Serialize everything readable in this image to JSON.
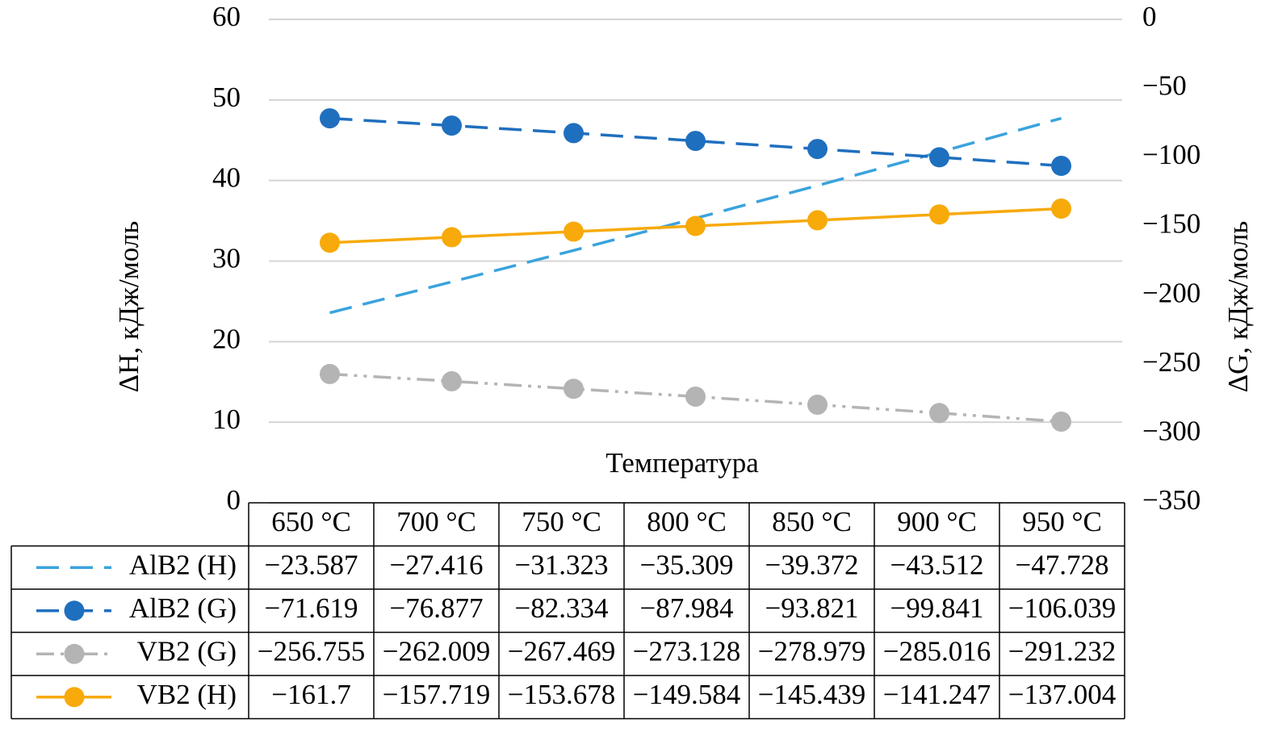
{
  "chart_data": {
    "type": "line",
    "x_label": "Температура",
    "y_label": "ΔH, кДж/моль",
    "y2_label": "ΔG, кДж/моль",
    "categories": [
      "650 °C",
      "700 °C",
      "750 °C",
      "800 °C",
      "850 °C",
      "900 °C",
      "950 °C"
    ],
    "ylim": [
      0,
      -60
    ],
    "yticks": [
      0,
      {
        "value": -10,
        "label": "10"
      },
      {
        "value": -20,
        "label": "20"
      },
      {
        "value": -30,
        "label": "30"
      },
      {
        "value": -40,
        "label": "40"
      },
      {
        "value": -50,
        "label": "50"
      },
      {
        "value": -60,
        "label": "60"
      }
    ],
    "y2lim": [
      -350,
      0
    ],
    "y2ticks": [
      {
        "value": -350,
        "label": "−350"
      },
      {
        "value": -300,
        "label": "−300"
      },
      {
        "value": -250,
        "label": "−250"
      },
      {
        "value": -200,
        "label": "−200"
      },
      {
        "value": -150,
        "label": "−150"
      },
      {
        "value": -100,
        "label": "−100"
      },
      {
        "value": -50,
        "label": "−50"
      },
      0
    ],
    "grid": true,
    "series": [
      {
        "name": "AlB2 (H)",
        "color": "#3aa3dd",
        "line_style": "dashed",
        "markers": false,
        "values": [
          -23.587,
          -27.416,
          -31.323,
          -35.309,
          -39.372,
          -43.512,
          -47.728
        ],
        "value_labels": [
          "−23.587",
          "−27.416",
          "−31.323",
          "−35.309",
          "−39.372",
          "−43.512",
          "−47.728"
        ]
      },
      {
        "name": "AlB2 (G)",
        "color": "#1f6fbf",
        "line_style": "dashed",
        "markers": true,
        "axis": "y2",
        "values": [
          -71.619,
          -76.877,
          -82.334,
          -87.984,
          -93.821,
          -99.841,
          -106.039
        ],
        "value_labels": [
          "−71.619",
          "−76.877",
          "−82.334",
          "−87.984",
          "−93.821",
          "−99.841",
          "−106.039"
        ]
      },
      {
        "name": "VB2 (G)",
        "color": "#b4b4b4",
        "line_style": "dash-dot-dot",
        "markers": true,
        "axis": "y2",
        "values": [
          -256.755,
          -262.009,
          -267.469,
          -273.128,
          -278.979,
          -285.016,
          -291.232
        ],
        "value_labels": [
          "−256.755",
          "−262.009",
          "−267.469",
          "−273.128",
          "−278.979",
          "−285.016",
          "−291.232"
        ]
      },
      {
        "name": "VB2 (H)",
        "color": "#f7aa0a",
        "line_style": "solid",
        "markers": true,
        "axis": "y2",
        "values": [
          -161.7,
          -157.719,
          -153.678,
          -149.584,
          -145.439,
          -141.247,
          -137.004
        ],
        "value_labels": [
          "−161.7",
          "−157.719",
          "−153.678",
          "−149.584",
          "−145.439",
          "−141.247",
          "−137.004"
        ]
      }
    ]
  }
}
